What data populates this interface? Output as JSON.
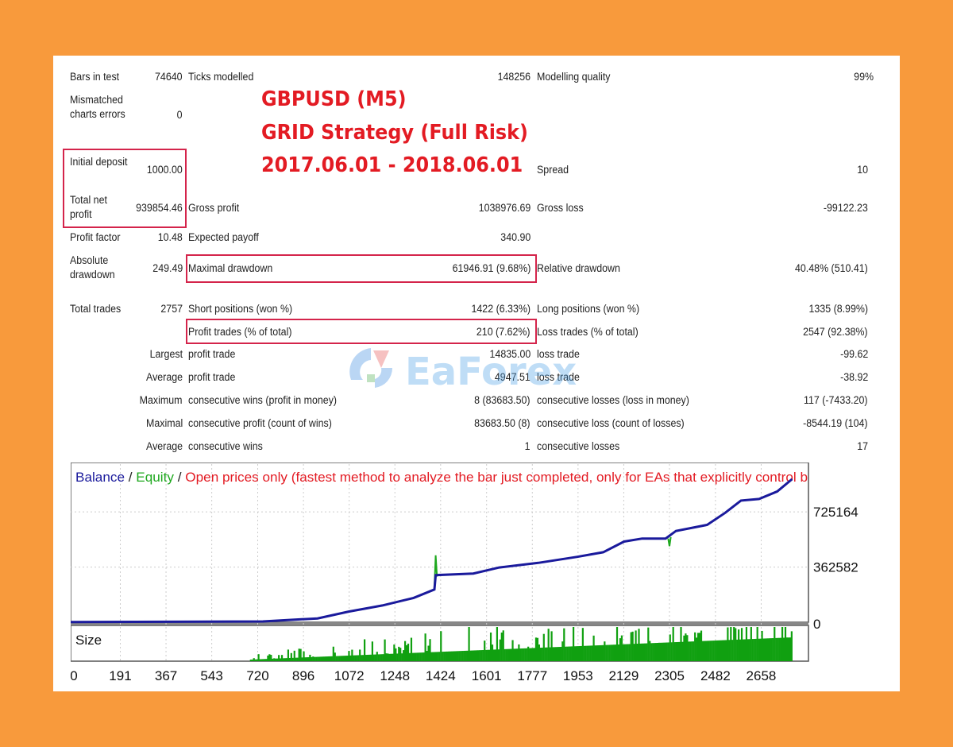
{
  "overlay_title": [
    "GBPUSD (M5)",
    "GRID Strategy (Full Risk)",
    "2017.06.01 - 2018.06.01"
  ],
  "watermark": "EaForex",
  "stats": {
    "bars_in_test": {
      "label": "Bars in test",
      "value": "74640"
    },
    "ticks_modelled": {
      "label": "Ticks modelled",
      "value": "148256"
    },
    "modelling_quality": {
      "label": "Modelling quality",
      "value": "99%"
    },
    "mismatched": {
      "label": "Mismatched charts errors",
      "value": "0"
    },
    "initial_deposit": {
      "label": "Initial deposit",
      "value": "1000.00"
    },
    "spread": {
      "label": "Spread",
      "value": "10"
    },
    "total_net_profit": {
      "label": "Total net profit",
      "value": "939854.46"
    },
    "gross_profit": {
      "label": "Gross profit",
      "value": "1038976.69"
    },
    "gross_loss": {
      "label": "Gross loss",
      "value": "-99122.23"
    },
    "profit_factor": {
      "label": "Profit factor",
      "value": "10.48"
    },
    "expected_payoff": {
      "label": "Expected payoff",
      "value": "340.90"
    },
    "absolute_drawdown": {
      "label": "Absolute drawdown",
      "value": "249.49"
    },
    "maximal_drawdown": {
      "label": "Maximal drawdown",
      "value": "61946.91 (9.68%)"
    },
    "relative_drawdown": {
      "label": "Relative drawdown",
      "value": "40.48% (510.41)"
    },
    "total_trades": {
      "label": "Total trades",
      "value": "2757"
    },
    "short_positions": {
      "label": "Short positions (won %)",
      "value": "1422 (6.33%)"
    },
    "long_positions": {
      "label": "Long positions (won %)",
      "value": "1335 (8.99%)"
    },
    "profit_trades": {
      "label": "Profit trades (% of total)",
      "value": "210 (7.62%)"
    },
    "loss_trades": {
      "label": "Loss trades (% of total)",
      "value": "2547 (92.38%)"
    },
    "largest": {
      "prefix": "Largest",
      "profit_label": "profit trade",
      "profit_value": "14835.00",
      "loss_label": "loss trade",
      "loss_value": "-99.62"
    },
    "average": {
      "prefix": "Average",
      "profit_label": "profit trade",
      "profit_value": "4947.51",
      "loss_label": "loss trade",
      "loss_value": "-38.92"
    },
    "maximum": {
      "prefix": "Maximum",
      "wins_label": "consecutive wins (profit in money)",
      "wins_value": "8 (83683.50)",
      "losses_label": "consecutive losses (loss in money)",
      "losses_value": "117 (-7433.20)"
    },
    "maximal": {
      "prefix": "Maximal",
      "wins_label": "consecutive profit (count of wins)",
      "wins_value": "83683.50 (8)",
      "losses_label": "consecutive loss (count of losses)",
      "losses_value": "-8544.19 (104)"
    },
    "average_consec": {
      "prefix": "Average",
      "wins_label": "consecutive wins",
      "wins_value": "1",
      "losses_label": "consecutive losses",
      "losses_value": "17"
    }
  },
  "chart_data": {
    "type": "line",
    "legend": {
      "balance": "Balance",
      "sep1": " / ",
      "equity": "Equity",
      "sep2": " / ",
      "mode": "Open prices only (fastest method to analyze the bar just completed, only for EAs that explicitly control b"
    },
    "colors": {
      "balance": "#1a1a9c",
      "equity": "#1fa81f",
      "mode": "#e31b23",
      "size": "#10a010"
    },
    "xlim": [
      0,
      2840
    ],
    "ylim": [
      0,
      1050000
    ],
    "x_ticks": [
      "0",
      "191",
      "367",
      "543",
      "720",
      "896",
      "1072",
      "1248",
      "1424",
      "1601",
      "1777",
      "1953",
      "2129",
      "2305",
      "2482",
      "2658"
    ],
    "y_ticks": [
      "0",
      "362582",
      "725164"
    ],
    "size_label": "Size",
    "series": [
      {
        "name": "Balance",
        "points": [
          [
            0,
            1000
          ],
          [
            740,
            5000
          ],
          [
            950,
            25000
          ],
          [
            1070,
            70000
          ],
          [
            1200,
            110000
          ],
          [
            1320,
            160000
          ],
          [
            1400,
            215000
          ],
          [
            1405,
            310000
          ],
          [
            1550,
            320000
          ],
          [
            1650,
            360000
          ],
          [
            1800,
            390000
          ],
          [
            1950,
            430000
          ],
          [
            2050,
            460000
          ],
          [
            2130,
            530000
          ],
          [
            2200,
            550000
          ],
          [
            2290,
            550000
          ],
          [
            2330,
            600000
          ],
          [
            2450,
            640000
          ],
          [
            2520,
            720000
          ],
          [
            2580,
            800000
          ],
          [
            2650,
            810000
          ],
          [
            2720,
            860000
          ],
          [
            2777,
            940854
          ]
        ]
      },
      {
        "name": "Equity",
        "spikes": [
          [
            1400,
            220000
          ],
          [
            1405,
            440000
          ],
          [
            1410,
            300000
          ],
          [
            2300,
            550000
          ],
          [
            2305,
            500000
          ],
          [
            2310,
            560000
          ]
        ]
      }
    ]
  }
}
